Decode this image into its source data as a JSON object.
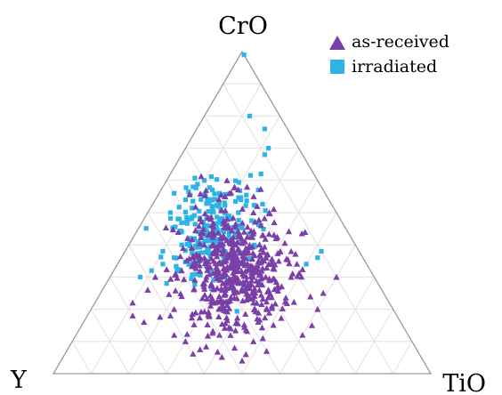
{
  "chart_data": {
    "type": "scatter",
    "subtype": "ternary",
    "title": "",
    "vertices": {
      "top": "CrO",
      "left": "Y",
      "right": "TiO"
    },
    "grid": true,
    "grid_divisions": 10,
    "legend_position": "top-right",
    "colors": {
      "as_received": "#7B3FA8",
      "irradiated": "#2DB4E6",
      "grid": "#E2E2E2",
      "axis": "#9A9A9A"
    },
    "series": [
      {
        "name": "as-received",
        "marker": "triangle",
        "color": "#7B3FA8",
        "center": {
          "top": 0.33,
          "left": 0.36,
          "right": 0.31
        },
        "count": 520,
        "points": [
          {
            "top": 0.6,
            "left": 0.24,
            "right": 0.16
          },
          {
            "top": 0.58,
            "left": 0.23,
            "right": 0.19
          },
          {
            "top": 0.55,
            "left": 0.27,
            "right": 0.18
          },
          {
            "top": 0.52,
            "left": 0.2,
            "right": 0.28
          },
          {
            "top": 0.5,
            "left": 0.22,
            "right": 0.28
          },
          {
            "top": 0.48,
            "left": 0.3,
            "right": 0.22
          },
          {
            "top": 0.46,
            "left": 0.22,
            "right": 0.32
          },
          {
            "top": 0.44,
            "left": 0.36,
            "right": 0.2
          },
          {
            "top": 0.42,
            "left": 0.2,
            "right": 0.38
          },
          {
            "top": 0.4,
            "left": 0.4,
            "right": 0.2
          },
          {
            "top": 0.38,
            "left": 0.18,
            "right": 0.44
          },
          {
            "top": 0.36,
            "left": 0.42,
            "right": 0.22
          },
          {
            "top": 0.34,
            "left": 0.26,
            "right": 0.4
          },
          {
            "top": 0.32,
            "left": 0.5,
            "right": 0.18
          },
          {
            "top": 0.3,
            "left": 0.22,
            "right": 0.48
          },
          {
            "top": 0.28,
            "left": 0.46,
            "right": 0.26
          },
          {
            "top": 0.26,
            "left": 0.3,
            "right": 0.44
          },
          {
            "top": 0.24,
            "left": 0.54,
            "right": 0.22
          },
          {
            "top": 0.22,
            "left": 0.36,
            "right": 0.42
          },
          {
            "top": 0.2,
            "left": 0.58,
            "right": 0.22
          },
          {
            "top": 0.18,
            "left": 0.6,
            "right": 0.22
          },
          {
            "top": 0.16,
            "left": 0.68,
            "right": 0.16
          },
          {
            "top": 0.14,
            "left": 0.46,
            "right": 0.4
          },
          {
            "top": 0.12,
            "left": 0.5,
            "right": 0.38
          },
          {
            "top": 0.1,
            "left": 0.42,
            "right": 0.48
          },
          {
            "top": 0.08,
            "left": 0.48,
            "right": 0.44
          },
          {
            "top": 0.06,
            "left": 0.46,
            "right": 0.48
          },
          {
            "top": 0.04,
            "left": 0.48,
            "right": 0.48
          },
          {
            "top": 0.07,
            "left": 0.4,
            "right": 0.53
          },
          {
            "top": 0.12,
            "left": 0.28,
            "right": 0.6
          },
          {
            "top": 0.15,
            "left": 0.24,
            "right": 0.61
          },
          {
            "top": 0.2,
            "left": 0.2,
            "right": 0.6
          },
          {
            "top": 0.25,
            "left": 0.16,
            "right": 0.59
          },
          {
            "top": 0.3,
            "left": 0.1,
            "right": 0.6
          },
          {
            "top": 0.1,
            "left": 0.6,
            "right": 0.3
          },
          {
            "top": 0.12,
            "left": 0.62,
            "right": 0.26
          },
          {
            "top": 0.18,
            "left": 0.7,
            "right": 0.12
          },
          {
            "top": 0.22,
            "left": 0.68,
            "right": 0.1
          },
          {
            "top": 0.26,
            "left": 0.62,
            "right": 0.12
          },
          {
            "top": 0.3,
            "left": 0.58,
            "right": 0.12
          }
        ]
      },
      {
        "name": "irradiated",
        "marker": "square",
        "color": "#2DB4E6",
        "center": {
          "top": 0.44,
          "left": 0.35,
          "right": 0.21
        },
        "count": 230,
        "points": [
          {
            "top": 0.99,
            "left": 0.0,
            "right": 0.01
          },
          {
            "top": 0.8,
            "left": 0.08,
            "right": 0.12
          },
          {
            "top": 0.76,
            "left": 0.06,
            "right": 0.18
          },
          {
            "top": 0.7,
            "left": 0.08,
            "right": 0.22
          },
          {
            "top": 0.68,
            "left": 0.1,
            "right": 0.22
          },
          {
            "top": 0.62,
            "left": 0.14,
            "right": 0.24
          },
          {
            "top": 0.6,
            "left": 0.3,
            "right": 0.1
          },
          {
            "top": 0.58,
            "left": 0.34,
            "right": 0.08
          },
          {
            "top": 0.56,
            "left": 0.28,
            "right": 0.16
          },
          {
            "top": 0.54,
            "left": 0.38,
            "right": 0.08
          },
          {
            "top": 0.52,
            "left": 0.32,
            "right": 0.16
          },
          {
            "top": 0.5,
            "left": 0.26,
            "right": 0.24
          },
          {
            "top": 0.48,
            "left": 0.4,
            "right": 0.12
          },
          {
            "top": 0.46,
            "left": 0.34,
            "right": 0.2
          },
          {
            "top": 0.44,
            "left": 0.44,
            "right": 0.12
          },
          {
            "top": 0.42,
            "left": 0.38,
            "right": 0.2
          },
          {
            "top": 0.4,
            "left": 0.46,
            "right": 0.14
          },
          {
            "top": 0.38,
            "left": 0.52,
            "right": 0.1
          },
          {
            "top": 0.36,
            "left": 0.5,
            "right": 0.14
          },
          {
            "top": 0.34,
            "left": 0.54,
            "right": 0.12
          },
          {
            "top": 0.32,
            "left": 0.58,
            "right": 0.1
          },
          {
            "top": 0.3,
            "left": 0.62,
            "right": 0.08
          },
          {
            "top": 0.28,
            "left": 0.56,
            "right": 0.16
          },
          {
            "top": 0.34,
            "left": 0.16,
            "right": 0.5
          },
          {
            "top": 0.38,
            "left": 0.1,
            "right": 0.52
          },
          {
            "top": 0.36,
            "left": 0.12,
            "right": 0.52
          },
          {
            "top": 0.42,
            "left": 0.2,
            "right": 0.38
          },
          {
            "top": 0.46,
            "left": 0.22,
            "right": 0.32
          },
          {
            "top": 0.5,
            "left": 0.44,
            "right": 0.06
          },
          {
            "top": 0.56,
            "left": 0.4,
            "right": 0.04
          }
        ]
      }
    ]
  }
}
